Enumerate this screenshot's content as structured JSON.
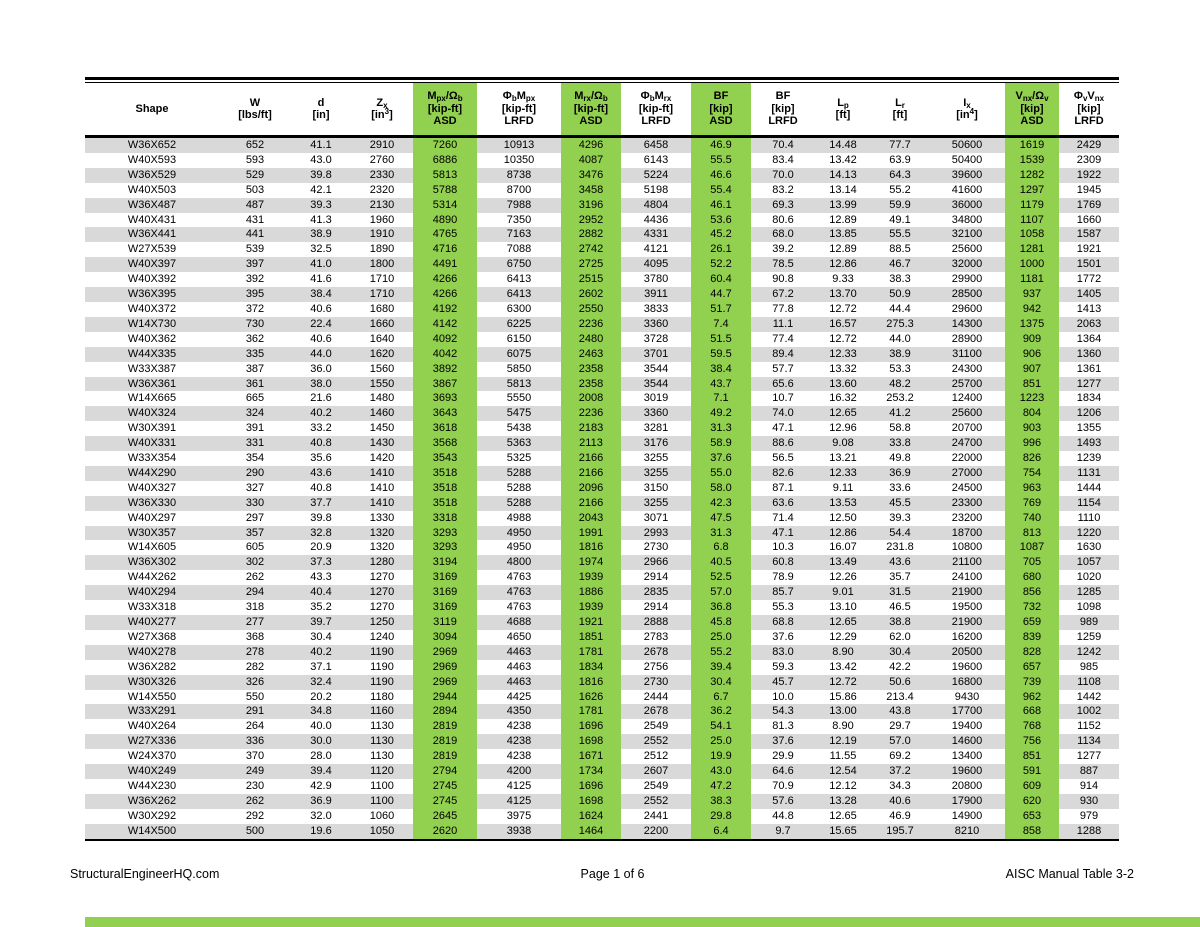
{
  "colors": {
    "asd_highlight_green": "#92D050",
    "row_stripe_gray": "#D9D9D9",
    "rule_black": "#000000"
  },
  "footer": {
    "left": "StructuralEngineerHQ.com",
    "center": "Page 1 of 6",
    "right": "AISC Manual Table 3-2"
  },
  "table": {
    "columns": [
      {
        "label_html": "Shape",
        "unit_html": "",
        "tag": "",
        "highlight": false
      },
      {
        "label_html": "W",
        "unit_html": "[lbs/ft]",
        "tag": "",
        "highlight": false
      },
      {
        "label_html": "d",
        "unit_html": "[in]",
        "tag": "",
        "highlight": false
      },
      {
        "label_html": "Z<sub>x</sub>",
        "unit_html": "[in<sup>3</sup>]",
        "tag": "",
        "highlight": false
      },
      {
        "label_html": "M<sub>px</sub>/&Omega;<sub>b</sub>",
        "unit_html": "[kip-ft]",
        "tag": "ASD",
        "highlight": true
      },
      {
        "label_html": "&Phi;<sub>b</sub>M<sub>px</sub>",
        "unit_html": "[kip-ft]",
        "tag": "LRFD",
        "highlight": false
      },
      {
        "label_html": "M<sub>rx</sub>/&Omega;<sub>b</sub>",
        "unit_html": "[kip-ft]",
        "tag": "ASD",
        "highlight": true
      },
      {
        "label_html": "&Phi;<sub>b</sub>M<sub>rx</sub>",
        "unit_html": "[kip-ft]",
        "tag": "LRFD",
        "highlight": false
      },
      {
        "label_html": "BF",
        "unit_html": "[kip]",
        "tag": "ASD",
        "highlight": true
      },
      {
        "label_html": "BF",
        "unit_html": "[kip]",
        "tag": "LRFD",
        "highlight": false
      },
      {
        "label_html": "L<sub>p</sub>",
        "unit_html": "[ft]",
        "tag": "",
        "highlight": false
      },
      {
        "label_html": "L<sub>r</sub>",
        "unit_html": "[ft]",
        "tag": "",
        "highlight": false
      },
      {
        "label_html": "I<sub>x</sub>",
        "unit_html": "[in<sup>4</sup>]",
        "tag": "",
        "highlight": false
      },
      {
        "label_html": "V<sub>nx</sub>/&Omega;<sub>v</sub>",
        "unit_html": "[kip]",
        "tag": "ASD",
        "highlight": true
      },
      {
        "label_html": "&Phi;<sub>v</sub>V<sub>nx</sub>",
        "unit_html": "[kip]",
        "tag": "LRFD",
        "highlight": false
      }
    ],
    "rows": [
      [
        "W36X652",
        "652",
        "41.1",
        "2910",
        "7260",
        "10913",
        "4296",
        "6458",
        "46.9",
        "70.4",
        "14.48",
        "77.7",
        "50600",
        "1619",
        "2429"
      ],
      [
        "W40X593",
        "593",
        "43.0",
        "2760",
        "6886",
        "10350",
        "4087",
        "6143",
        "55.5",
        "83.4",
        "13.42",
        "63.9",
        "50400",
        "1539",
        "2309"
      ],
      [
        "W36X529",
        "529",
        "39.8",
        "2330",
        "5813",
        "8738",
        "3476",
        "5224",
        "46.6",
        "70.0",
        "14.13",
        "64.3",
        "39600",
        "1282",
        "1922"
      ],
      [
        "W40X503",
        "503",
        "42.1",
        "2320",
        "5788",
        "8700",
        "3458",
        "5198",
        "55.4",
        "83.2",
        "13.14",
        "55.2",
        "41600",
        "1297",
        "1945"
      ],
      [
        "W36X487",
        "487",
        "39.3",
        "2130",
        "5314",
        "7988",
        "3196",
        "4804",
        "46.1",
        "69.3",
        "13.99",
        "59.9",
        "36000",
        "1179",
        "1769"
      ],
      [
        "W40X431",
        "431",
        "41.3",
        "1960",
        "4890",
        "7350",
        "2952",
        "4436",
        "53.6",
        "80.6",
        "12.89",
        "49.1",
        "34800",
        "1107",
        "1660"
      ],
      [
        "W36X441",
        "441",
        "38.9",
        "1910",
        "4765",
        "7163",
        "2882",
        "4331",
        "45.2",
        "68.0",
        "13.85",
        "55.5",
        "32100",
        "1058",
        "1587"
      ],
      [
        "W27X539",
        "539",
        "32.5",
        "1890",
        "4716",
        "7088",
        "2742",
        "4121",
        "26.1",
        "39.2",
        "12.89",
        "88.5",
        "25600",
        "1281",
        "1921"
      ],
      [
        "W40X397",
        "397",
        "41.0",
        "1800",
        "4491",
        "6750",
        "2725",
        "4095",
        "52.2",
        "78.5",
        "12.86",
        "46.7",
        "32000",
        "1000",
        "1501"
      ],
      [
        "W40X392",
        "392",
        "41.6",
        "1710",
        "4266",
        "6413",
        "2515",
        "3780",
        "60.4",
        "90.8",
        "9.33",
        "38.3",
        "29900",
        "1181",
        "1772"
      ],
      [
        "W36X395",
        "395",
        "38.4",
        "1710",
        "4266",
        "6413",
        "2602",
        "3911",
        "44.7",
        "67.2",
        "13.70",
        "50.9",
        "28500",
        "937",
        "1405"
      ],
      [
        "W40X372",
        "372",
        "40.6",
        "1680",
        "4192",
        "6300",
        "2550",
        "3833",
        "51.7",
        "77.8",
        "12.72",
        "44.4",
        "29600",
        "942",
        "1413"
      ],
      [
        "W14X730",
        "730",
        "22.4",
        "1660",
        "4142",
        "6225",
        "2236",
        "3360",
        "7.4",
        "11.1",
        "16.57",
        "275.3",
        "14300",
        "1375",
        "2063"
      ],
      [
        "W40X362",
        "362",
        "40.6",
        "1640",
        "4092",
        "6150",
        "2480",
        "3728",
        "51.5",
        "77.4",
        "12.72",
        "44.0",
        "28900",
        "909",
        "1364"
      ],
      [
        "W44X335",
        "335",
        "44.0",
        "1620",
        "4042",
        "6075",
        "2463",
        "3701",
        "59.5",
        "89.4",
        "12.33",
        "38.9",
        "31100",
        "906",
        "1360"
      ],
      [
        "W33X387",
        "387",
        "36.0",
        "1560",
        "3892",
        "5850",
        "2358",
        "3544",
        "38.4",
        "57.7",
        "13.32",
        "53.3",
        "24300",
        "907",
        "1361"
      ],
      [
        "W36X361",
        "361",
        "38.0",
        "1550",
        "3867",
        "5813",
        "2358",
        "3544",
        "43.7",
        "65.6",
        "13.60",
        "48.2",
        "25700",
        "851",
        "1277"
      ],
      [
        "W14X665",
        "665",
        "21.6",
        "1480",
        "3693",
        "5550",
        "2008",
        "3019",
        "7.1",
        "10.7",
        "16.32",
        "253.2",
        "12400",
        "1223",
        "1834"
      ],
      [
        "W40X324",
        "324",
        "40.2",
        "1460",
        "3643",
        "5475",
        "2236",
        "3360",
        "49.2",
        "74.0",
        "12.65",
        "41.2",
        "25600",
        "804",
        "1206"
      ],
      [
        "W30X391",
        "391",
        "33.2",
        "1450",
        "3618",
        "5438",
        "2183",
        "3281",
        "31.3",
        "47.1",
        "12.96",
        "58.8",
        "20700",
        "903",
        "1355"
      ],
      [
        "W40X331",
        "331",
        "40.8",
        "1430",
        "3568",
        "5363",
        "2113",
        "3176",
        "58.9",
        "88.6",
        "9.08",
        "33.8",
        "24700",
        "996",
        "1493"
      ],
      [
        "W33X354",
        "354",
        "35.6",
        "1420",
        "3543",
        "5325",
        "2166",
        "3255",
        "37.6",
        "56.5",
        "13.21",
        "49.8",
        "22000",
        "826",
        "1239"
      ],
      [
        "W44X290",
        "290",
        "43.6",
        "1410",
        "3518",
        "5288",
        "2166",
        "3255",
        "55.0",
        "82.6",
        "12.33",
        "36.9",
        "27000",
        "754",
        "1131"
      ],
      [
        "W40X327",
        "327",
        "40.8",
        "1410",
        "3518",
        "5288",
        "2096",
        "3150",
        "58.0",
        "87.1",
        "9.11",
        "33.6",
        "24500",
        "963",
        "1444"
      ],
      [
        "W36X330",
        "330",
        "37.7",
        "1410",
        "3518",
        "5288",
        "2166",
        "3255",
        "42.3",
        "63.6",
        "13.53",
        "45.5",
        "23300",
        "769",
        "1154"
      ],
      [
        "W40X297",
        "297",
        "39.8",
        "1330",
        "3318",
        "4988",
        "2043",
        "3071",
        "47.5",
        "71.4",
        "12.50",
        "39.3",
        "23200",
        "740",
        "1110"
      ],
      [
        "W30X357",
        "357",
        "32.8",
        "1320",
        "3293",
        "4950",
        "1991",
        "2993",
        "31.3",
        "47.1",
        "12.86",
        "54.4",
        "18700",
        "813",
        "1220"
      ],
      [
        "W14X605",
        "605",
        "20.9",
        "1320",
        "3293",
        "4950",
        "1816",
        "2730",
        "6.8",
        "10.3",
        "16.07",
        "231.8",
        "10800",
        "1087",
        "1630"
      ],
      [
        "W36X302",
        "302",
        "37.3",
        "1280",
        "3194",
        "4800",
        "1974",
        "2966",
        "40.5",
        "60.8",
        "13.49",
        "43.6",
        "21100",
        "705",
        "1057"
      ],
      [
        "W44X262",
        "262",
        "43.3",
        "1270",
        "3169",
        "4763",
        "1939",
        "2914",
        "52.5",
        "78.9",
        "12.26",
        "35.7",
        "24100",
        "680",
        "1020"
      ],
      [
        "W40X294",
        "294",
        "40.4",
        "1270",
        "3169",
        "4763",
        "1886",
        "2835",
        "57.0",
        "85.7",
        "9.01",
        "31.5",
        "21900",
        "856",
        "1285"
      ],
      [
        "W33X318",
        "318",
        "35.2",
        "1270",
        "3169",
        "4763",
        "1939",
        "2914",
        "36.8",
        "55.3",
        "13.10",
        "46.5",
        "19500",
        "732",
        "1098"
      ],
      [
        "W40X277",
        "277",
        "39.7",
        "1250",
        "3119",
        "4688",
        "1921",
        "2888",
        "45.8",
        "68.8",
        "12.65",
        "38.8",
        "21900",
        "659",
        "989"
      ],
      [
        "W27X368",
        "368",
        "30.4",
        "1240",
        "3094",
        "4650",
        "1851",
        "2783",
        "25.0",
        "37.6",
        "12.29",
        "62.0",
        "16200",
        "839",
        "1259"
      ],
      [
        "W40X278",
        "278",
        "40.2",
        "1190",
        "2969",
        "4463",
        "1781",
        "2678",
        "55.2",
        "83.0",
        "8.90",
        "30.4",
        "20500",
        "828",
        "1242"
      ],
      [
        "W36X282",
        "282",
        "37.1",
        "1190",
        "2969",
        "4463",
        "1834",
        "2756",
        "39.4",
        "59.3",
        "13.42",
        "42.2",
        "19600",
        "657",
        "985"
      ],
      [
        "W30X326",
        "326",
        "32.4",
        "1190",
        "2969",
        "4463",
        "1816",
        "2730",
        "30.4",
        "45.7",
        "12.72",
        "50.6",
        "16800",
        "739",
        "1108"
      ],
      [
        "W14X550",
        "550",
        "20.2",
        "1180",
        "2944",
        "4425",
        "1626",
        "2444",
        "6.7",
        "10.0",
        "15.86",
        "213.4",
        "9430",
        "962",
        "1442"
      ],
      [
        "W33X291",
        "291",
        "34.8",
        "1160",
        "2894",
        "4350",
        "1781",
        "2678",
        "36.2",
        "54.3",
        "13.00",
        "43.8",
        "17700",
        "668",
        "1002"
      ],
      [
        "W40X264",
        "264",
        "40.0",
        "1130",
        "2819",
        "4238",
        "1696",
        "2549",
        "54.1",
        "81.3",
        "8.90",
        "29.7",
        "19400",
        "768",
        "1152"
      ],
      [
        "W27X336",
        "336",
        "30.0",
        "1130",
        "2819",
        "4238",
        "1698",
        "2552",
        "25.0",
        "37.6",
        "12.19",
        "57.0",
        "14600",
        "756",
        "1134"
      ],
      [
        "W24X370",
        "370",
        "28.0",
        "1130",
        "2819",
        "4238",
        "1671",
        "2512",
        "19.9",
        "29.9",
        "11.55",
        "69.2",
        "13400",
        "851",
        "1277"
      ],
      [
        "W40X249",
        "249",
        "39.4",
        "1120",
        "2794",
        "4200",
        "1734",
        "2607",
        "43.0",
        "64.6",
        "12.54",
        "37.2",
        "19600",
        "591",
        "887"
      ],
      [
        "W44X230",
        "230",
        "42.9",
        "1100",
        "2745",
        "4125",
        "1696",
        "2549",
        "47.2",
        "70.9",
        "12.12",
        "34.3",
        "20800",
        "609",
        "914"
      ],
      [
        "W36X262",
        "262",
        "36.9",
        "1100",
        "2745",
        "4125",
        "1698",
        "2552",
        "38.3",
        "57.6",
        "13.28",
        "40.6",
        "17900",
        "620",
        "930"
      ],
      [
        "W30X292",
        "292",
        "32.0",
        "1060",
        "2645",
        "3975",
        "1624",
        "2441",
        "29.8",
        "44.8",
        "12.65",
        "46.9",
        "14900",
        "653",
        "979"
      ],
      [
        "W14X500",
        "500",
        "19.6",
        "1050",
        "2620",
        "3938",
        "1464",
        "2200",
        "6.4",
        "9.7",
        "15.65",
        "195.7",
        "8210",
        "858",
        "1288"
      ]
    ]
  }
}
